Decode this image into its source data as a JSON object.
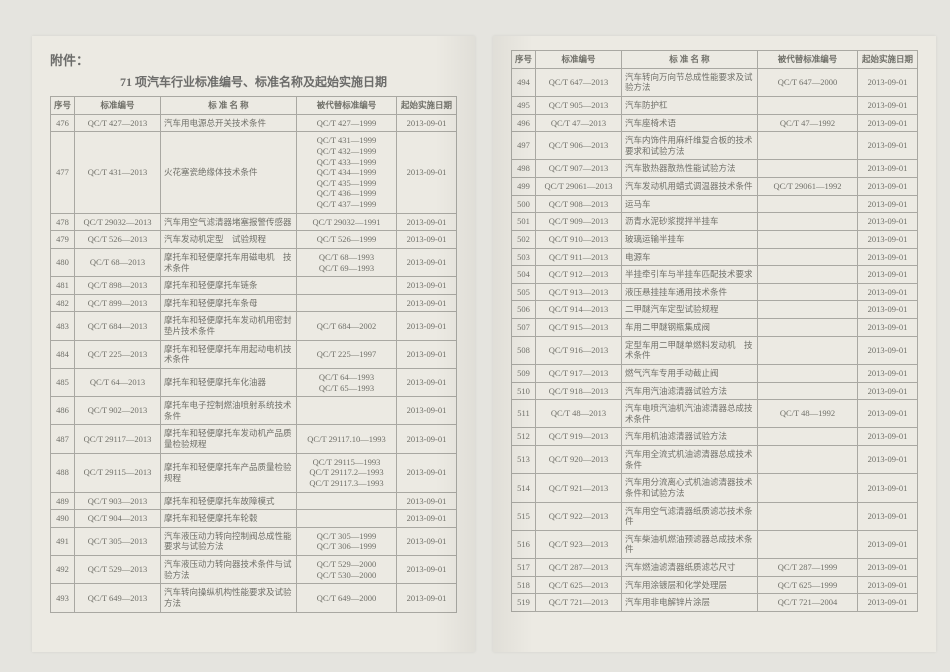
{
  "attachment_label": "附件：",
  "title": "71 项汽车行业标准编号、标准名称及起始实施日期",
  "columns": [
    "序号",
    "标准编号",
    "标 准 名 称",
    "被代替标准编号",
    "起始实施日期"
  ],
  "rows_left": [
    {
      "seq": "476",
      "std": "QC/T 427—2013",
      "name": "汽车用电源总开关技术条件",
      "rep": "QC/T 427—1999",
      "date": "2013-09-01"
    },
    {
      "seq": "477",
      "std": "QC/T 431—2013",
      "name": "火花塞瓷绝缘体技术条件",
      "rep": "QC/T 431—1999\nQC/T 432—1999\nQC/T 433—1999\nQC/T 434—1999\nQC/T 435—1999\nQC/T 436—1999\nQC/T 437—1999",
      "date": "2013-09-01"
    },
    {
      "seq": "478",
      "std": "QC/T 29032—2013",
      "name": "汽车用空气滤清器堵塞报警传感器",
      "rep": "QC/T 29032—1991",
      "date": "2013-09-01"
    },
    {
      "seq": "479",
      "std": "QC/T 526—2013",
      "name": "汽车发动机定型　试验规程",
      "rep": "QC/T 526—1999",
      "date": "2013-09-01"
    },
    {
      "seq": "480",
      "std": "QC/T 68—2013",
      "name": "摩托车和轻便摩托车用磁电机　技术条件",
      "rep": "QC/T 68—1993\nQC/T 69—1993",
      "date": "2013-09-01"
    },
    {
      "seq": "481",
      "std": "QC/T 898—2013",
      "name": "摩托车和轻便摩托车链条",
      "rep": "",
      "date": "2013-09-01"
    },
    {
      "seq": "482",
      "std": "QC/T 899—2013",
      "name": "摩托车和轻便摩托车条母",
      "rep": "",
      "date": "2013-09-01"
    },
    {
      "seq": "483",
      "std": "QC/T 684—2013",
      "name": "摩托车和轻便摩托车发动机用密封垫片技术条件",
      "rep": "QC/T 684—2002",
      "date": "2013-09-01"
    },
    {
      "seq": "484",
      "std": "QC/T 225—2013",
      "name": "摩托车和轻便摩托车用起动电机技术条件",
      "rep": "QC/T 225—1997",
      "date": "2013-09-01"
    },
    {
      "seq": "485",
      "std": "QC/T 64—2013",
      "name": "摩托车和轻便摩托车化油器",
      "rep": "QC/T 64—1993\nQC/T 65—1993",
      "date": "2013-09-01"
    },
    {
      "seq": "486",
      "std": "QC/T 902—2013",
      "name": "摩托车电子控制燃油喷射系统技术条件",
      "rep": "",
      "date": "2013-09-01"
    },
    {
      "seq": "487",
      "std": "QC/T 29117—2013",
      "name": "摩托车和轻便摩托车发动机产品质量检验规程",
      "rep": "QC/T 29117.10—1993",
      "date": "2013-09-01"
    },
    {
      "seq": "488",
      "std": "QC/T 29115—2013",
      "name": "摩托车和轻便摩托车产品质量检验规程",
      "rep": "QC/T 29115—1993\nQC/T 29117.2—1993\nQC/T 29117.3—1993",
      "date": "2013-09-01"
    },
    {
      "seq": "489",
      "std": "QC/T 903—2013",
      "name": "摩托车和轻便摩托车故障模式",
      "rep": "",
      "date": "2013-09-01"
    },
    {
      "seq": "490",
      "std": "QC/T 904—2013",
      "name": "摩托车和轻便摩托车轮毂",
      "rep": "",
      "date": "2013-09-01"
    },
    {
      "seq": "491",
      "std": "QC/T 305—2013",
      "name": "汽车液压动力转向控制阀总成性能要求与试验方法",
      "rep": "QC/T 305—1999\nQC/T 306—1999",
      "date": "2013-09-01"
    },
    {
      "seq": "492",
      "std": "QC/T 529—2013",
      "name": "汽车液压动力转向器技术条件与试验方法",
      "rep": "QC/T 529—2000\nQC/T 530—2000",
      "date": "2013-09-01"
    },
    {
      "seq": "493",
      "std": "QC/T 649—2013",
      "name": "汽车转向操纵机构性能要求及试验方法",
      "rep": "QC/T 649—2000",
      "date": "2013-09-01"
    }
  ],
  "rows_right": [
    {
      "seq": "494",
      "std": "QC/T 647—2013",
      "name": "汽车转向万向节总成性能要求及试验方法",
      "rep": "QC/T 647—2000",
      "date": "2013-09-01"
    },
    {
      "seq": "495",
      "std": "QC/T 905—2013",
      "name": "汽车防护杠",
      "rep": "",
      "date": "2013-09-01"
    },
    {
      "seq": "496",
      "std": "QC/T 47—2013",
      "name": "汽车座椅术语",
      "rep": "QC/T 47—1992",
      "date": "2013-09-01"
    },
    {
      "seq": "497",
      "std": "QC/T 906—2013",
      "name": "汽车内饰件用麻纤维复合板的技术要求和试验方法",
      "rep": "",
      "date": "2013-09-01"
    },
    {
      "seq": "498",
      "std": "QC/T 907—2013",
      "name": "汽车散热器散热性能试验方法",
      "rep": "",
      "date": "2013-09-01"
    },
    {
      "seq": "499",
      "std": "QC/T 29061—2013",
      "name": "汽车发动机用蜡式调温器技术条件",
      "rep": "QC/T 29061—1992",
      "date": "2013-09-01"
    },
    {
      "seq": "500",
      "std": "QC/T 908—2013",
      "name": "运马车",
      "rep": "",
      "date": "2013-09-01"
    },
    {
      "seq": "501",
      "std": "QC/T 909—2013",
      "name": "沥青水泥砂浆搅拌半挂车",
      "rep": "",
      "date": "2013-09-01"
    },
    {
      "seq": "502",
      "std": "QC/T 910—2013",
      "name": "玻璃运输半挂车",
      "rep": "",
      "date": "2013-09-01"
    },
    {
      "seq": "503",
      "std": "QC/T 911—2013",
      "name": "电源车",
      "rep": "",
      "date": "2013-09-01"
    },
    {
      "seq": "504",
      "std": "QC/T 912—2013",
      "name": "半挂牵引车与半挂车匹配技术要求",
      "rep": "",
      "date": "2013-09-01"
    },
    {
      "seq": "505",
      "std": "QC/T 913—2013",
      "name": "液压悬挂挂车通用技术条件",
      "rep": "",
      "date": "2013-09-01"
    },
    {
      "seq": "506",
      "std": "QC/T 914—2013",
      "name": "二甲醚汽车定型试验规程",
      "rep": "",
      "date": "2013-09-01"
    },
    {
      "seq": "507",
      "std": "QC/T 915—2013",
      "name": "车用二甲醚钢瓶集成阀",
      "rep": "",
      "date": "2013-09-01"
    },
    {
      "seq": "508",
      "std": "QC/T 916—2013",
      "name": "定型车用二甲醚单燃料发动机　技术条件",
      "rep": "",
      "date": "2013-09-01"
    },
    {
      "seq": "509",
      "std": "QC/T 917—2013",
      "name": "燃气汽车专用手动截止阀",
      "rep": "",
      "date": "2013-09-01"
    },
    {
      "seq": "510",
      "std": "QC/T 918—2013",
      "name": "汽车用汽油滤清器试验方法",
      "rep": "",
      "date": "2013-09-01"
    },
    {
      "seq": "511",
      "std": "QC/T 48—2013",
      "name": "汽车电喷汽油机汽油滤清器总成技术条件",
      "rep": "QC/T 48—1992",
      "date": "2013-09-01"
    },
    {
      "seq": "512",
      "std": "QC/T 919—2013",
      "name": "汽车用机油滤清器试验方法",
      "rep": "",
      "date": "2013-09-01"
    },
    {
      "seq": "513",
      "std": "QC/T 920—2013",
      "name": "汽车用全流式机油滤清器总成技术条件",
      "rep": "",
      "date": "2013-09-01"
    },
    {
      "seq": "514",
      "std": "QC/T 921—2013",
      "name": "汽车用分流离心式机油滤清器技术条件和试验方法",
      "rep": "",
      "date": "2013-09-01"
    },
    {
      "seq": "515",
      "std": "QC/T 922—2013",
      "name": "汽车用空气滤清器纸质滤芯技术条件",
      "rep": "",
      "date": "2013-09-01"
    },
    {
      "seq": "516",
      "std": "QC/T 923—2013",
      "name": "汽车柴油机燃油预滤器总成技术条件",
      "rep": "",
      "date": "2013-09-01"
    },
    {
      "seq": "517",
      "std": "QC/T 287—2013",
      "name": "汽车燃油滤清器纸质滤芯尺寸",
      "rep": "QC/T 287—1999",
      "date": "2013-09-01"
    },
    {
      "seq": "518",
      "std": "QC/T 625—2013",
      "name": "汽车用涂镀层和化学处理层",
      "rep": "QC/T 625—1999",
      "date": "2013-09-01"
    },
    {
      "seq": "519",
      "std": "QC/T 721—2013",
      "name": "汽车用非电解锌片涂层",
      "rep": "QC/T 721—2004",
      "date": "2013-09-01"
    }
  ]
}
